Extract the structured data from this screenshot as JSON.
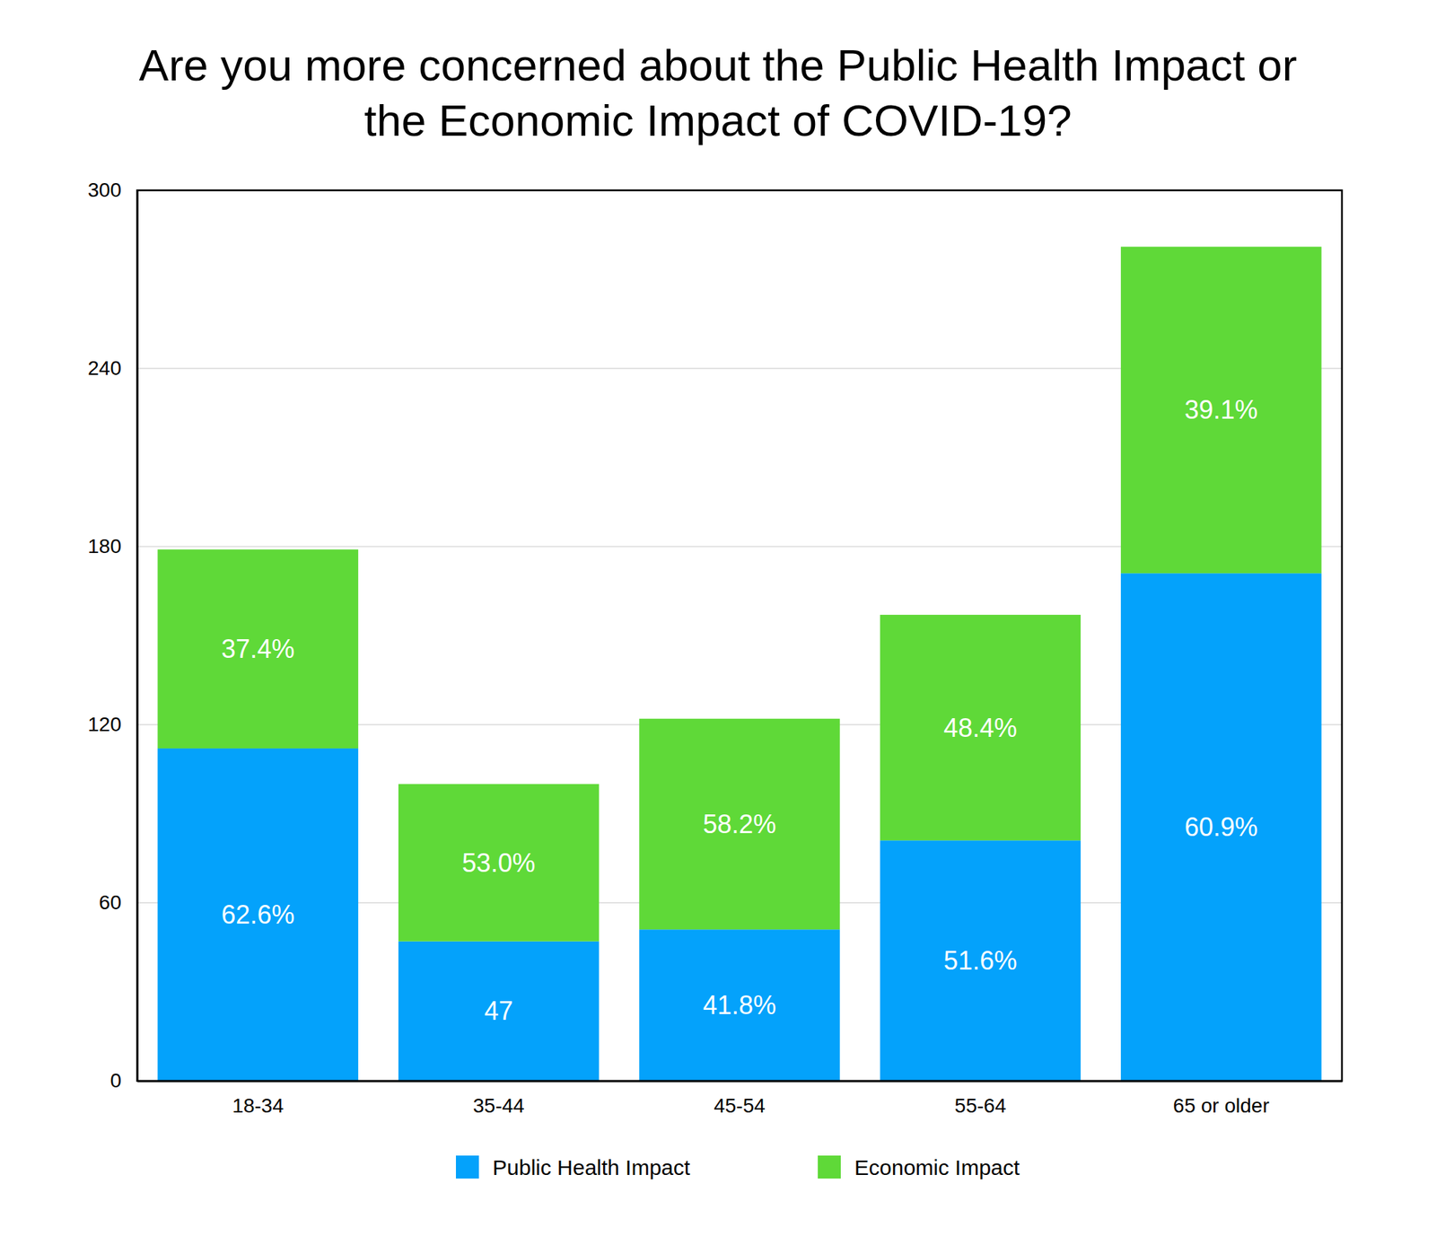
{
  "chart_data": {
    "type": "bar",
    "stacked": true,
    "title": "Are you more concerned about the Public Health Impact or the Economic Impact of COVID-19?",
    "categories": [
      "18-34",
      "35-44",
      "45-54",
      "55-64",
      "65 or older"
    ],
    "series": [
      {
        "name": "Public Health Impact",
        "color": "#04a2fb",
        "values": [
          112,
          47,
          51,
          81,
          171
        ],
        "share_labels": [
          "62.6%",
          "47",
          "41.8%",
          "51.6%",
          "60.9%"
        ]
      },
      {
        "name": "Economic Impact",
        "color": "#5fd938",
        "values": [
          67,
          53,
          71,
          76,
          110
        ],
        "share_labels": [
          "37.4%",
          "53.0%",
          "58.2%",
          "48.4%",
          "39.1%"
        ]
      }
    ],
    "ylim": [
      0,
      300
    ],
    "yticks": [
      0,
      60,
      120,
      180,
      240,
      300
    ],
    "grid": true,
    "legend": "bottom"
  }
}
